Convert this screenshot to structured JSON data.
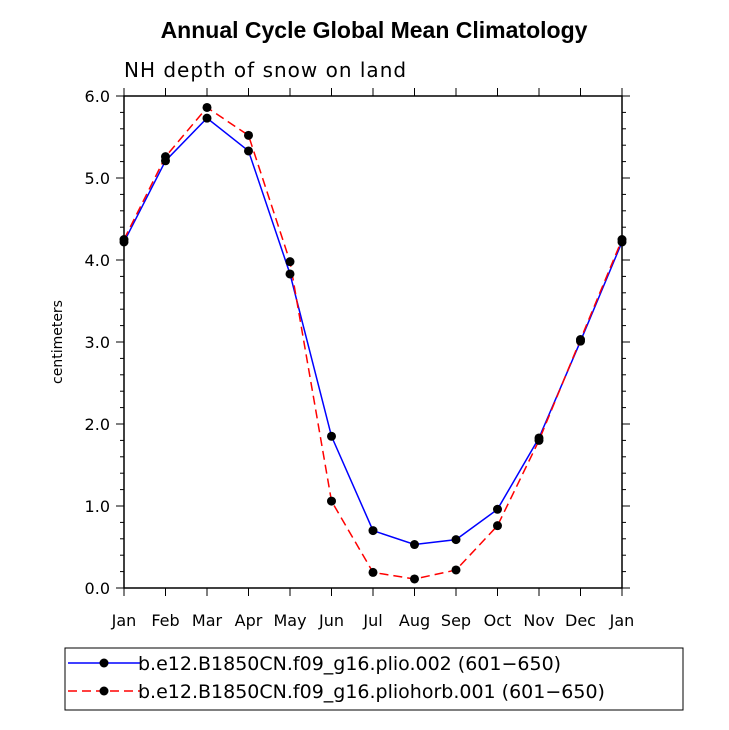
{
  "chart_data": {
    "type": "line",
    "title": "Annual Cycle Global Mean Climatology",
    "subtitle": "NH depth of snow on land",
    "xlabel": "",
    "ylabel": "centimeters",
    "categories": [
      "Jan",
      "Feb",
      "Mar",
      "Apr",
      "May",
      "Jun",
      "Jul",
      "Aug",
      "Sep",
      "Oct",
      "Nov",
      "Dec",
      "Jan"
    ],
    "ylim": [
      0.0,
      6.0
    ],
    "yticks": [
      "0.0",
      "1.0",
      "2.0",
      "3.0",
      "4.0",
      "5.0",
      "6.0"
    ],
    "series": [
      {
        "name": "b.e12.B1850CN.f09_g16.plio.002 (601−650)",
        "color": "#0000ff",
        "dash": "solid",
        "values": [
          4.22,
          5.21,
          5.73,
          5.33,
          3.83,
          1.85,
          0.7,
          0.53,
          0.59,
          0.96,
          1.83,
          3.01,
          4.22
        ]
      },
      {
        "name": "b.e12.B1850CN.f09_g16.pliohorb.001 (601−650)",
        "color": "#ff0000",
        "dash": "dashed",
        "values": [
          4.25,
          5.26,
          5.86,
          5.52,
          3.98,
          1.06,
          0.19,
          0.11,
          0.22,
          0.76,
          1.8,
          3.03,
          4.25
        ]
      }
    ],
    "legend_position": "bottom"
  }
}
